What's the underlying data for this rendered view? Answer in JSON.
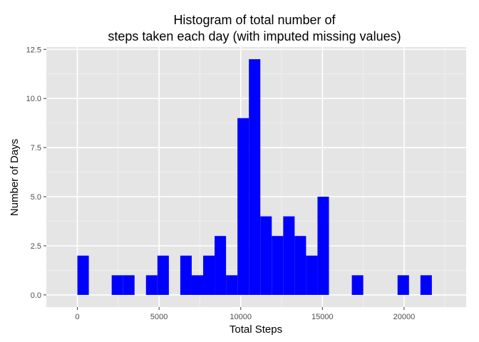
{
  "chart_data": {
    "type": "bar",
    "title_line1": "Histogram of total number of",
    "title_line2": "steps taken each day (with imputed missing values)",
    "xlabel": "Total Steps",
    "ylabel": "Number of Days",
    "xlim": [
      -1900,
      23800
    ],
    "ylim": [
      -0.62,
      12.62
    ],
    "bin_width": 700,
    "x_ticks": [
      0,
      5000,
      10000,
      15000,
      20000
    ],
    "x_tick_labels": [
      "0",
      "5000",
      "10000",
      "15000",
      "20000"
    ],
    "y_ticks": [
      0,
      2.5,
      5,
      7.5,
      10,
      12.5
    ],
    "y_tick_labels": [
      "0.0",
      "2.5",
      "5.0",
      "7.5",
      "10.0",
      "12.5"
    ],
    "bins": [
      {
        "start": 0,
        "count": 2
      },
      {
        "start": 2100,
        "count": 1
      },
      {
        "start": 2800,
        "count": 1
      },
      {
        "start": 4200,
        "count": 1
      },
      {
        "start": 4900,
        "count": 2
      },
      {
        "start": 6300,
        "count": 2
      },
      {
        "start": 7000,
        "count": 1
      },
      {
        "start": 7700,
        "count": 2
      },
      {
        "start": 8400,
        "count": 3
      },
      {
        "start": 9100,
        "count": 1
      },
      {
        "start": 9800,
        "count": 9
      },
      {
        "start": 10500,
        "count": 12
      },
      {
        "start": 11200,
        "count": 4
      },
      {
        "start": 11900,
        "count": 3
      },
      {
        "start": 12600,
        "count": 4
      },
      {
        "start": 13300,
        "count": 3
      },
      {
        "start": 14000,
        "count": 2
      },
      {
        "start": 14700,
        "count": 5
      },
      {
        "start": 16800,
        "count": 1
      },
      {
        "start": 19600,
        "count": 1
      },
      {
        "start": 21000,
        "count": 1
      }
    ],
    "bar_color": "#0000ff",
    "panel_color": "#e5e5e5",
    "grid_major_color": "#ffffff",
    "grid_minor_color": "#f2f2f2",
    "grid": true
  }
}
